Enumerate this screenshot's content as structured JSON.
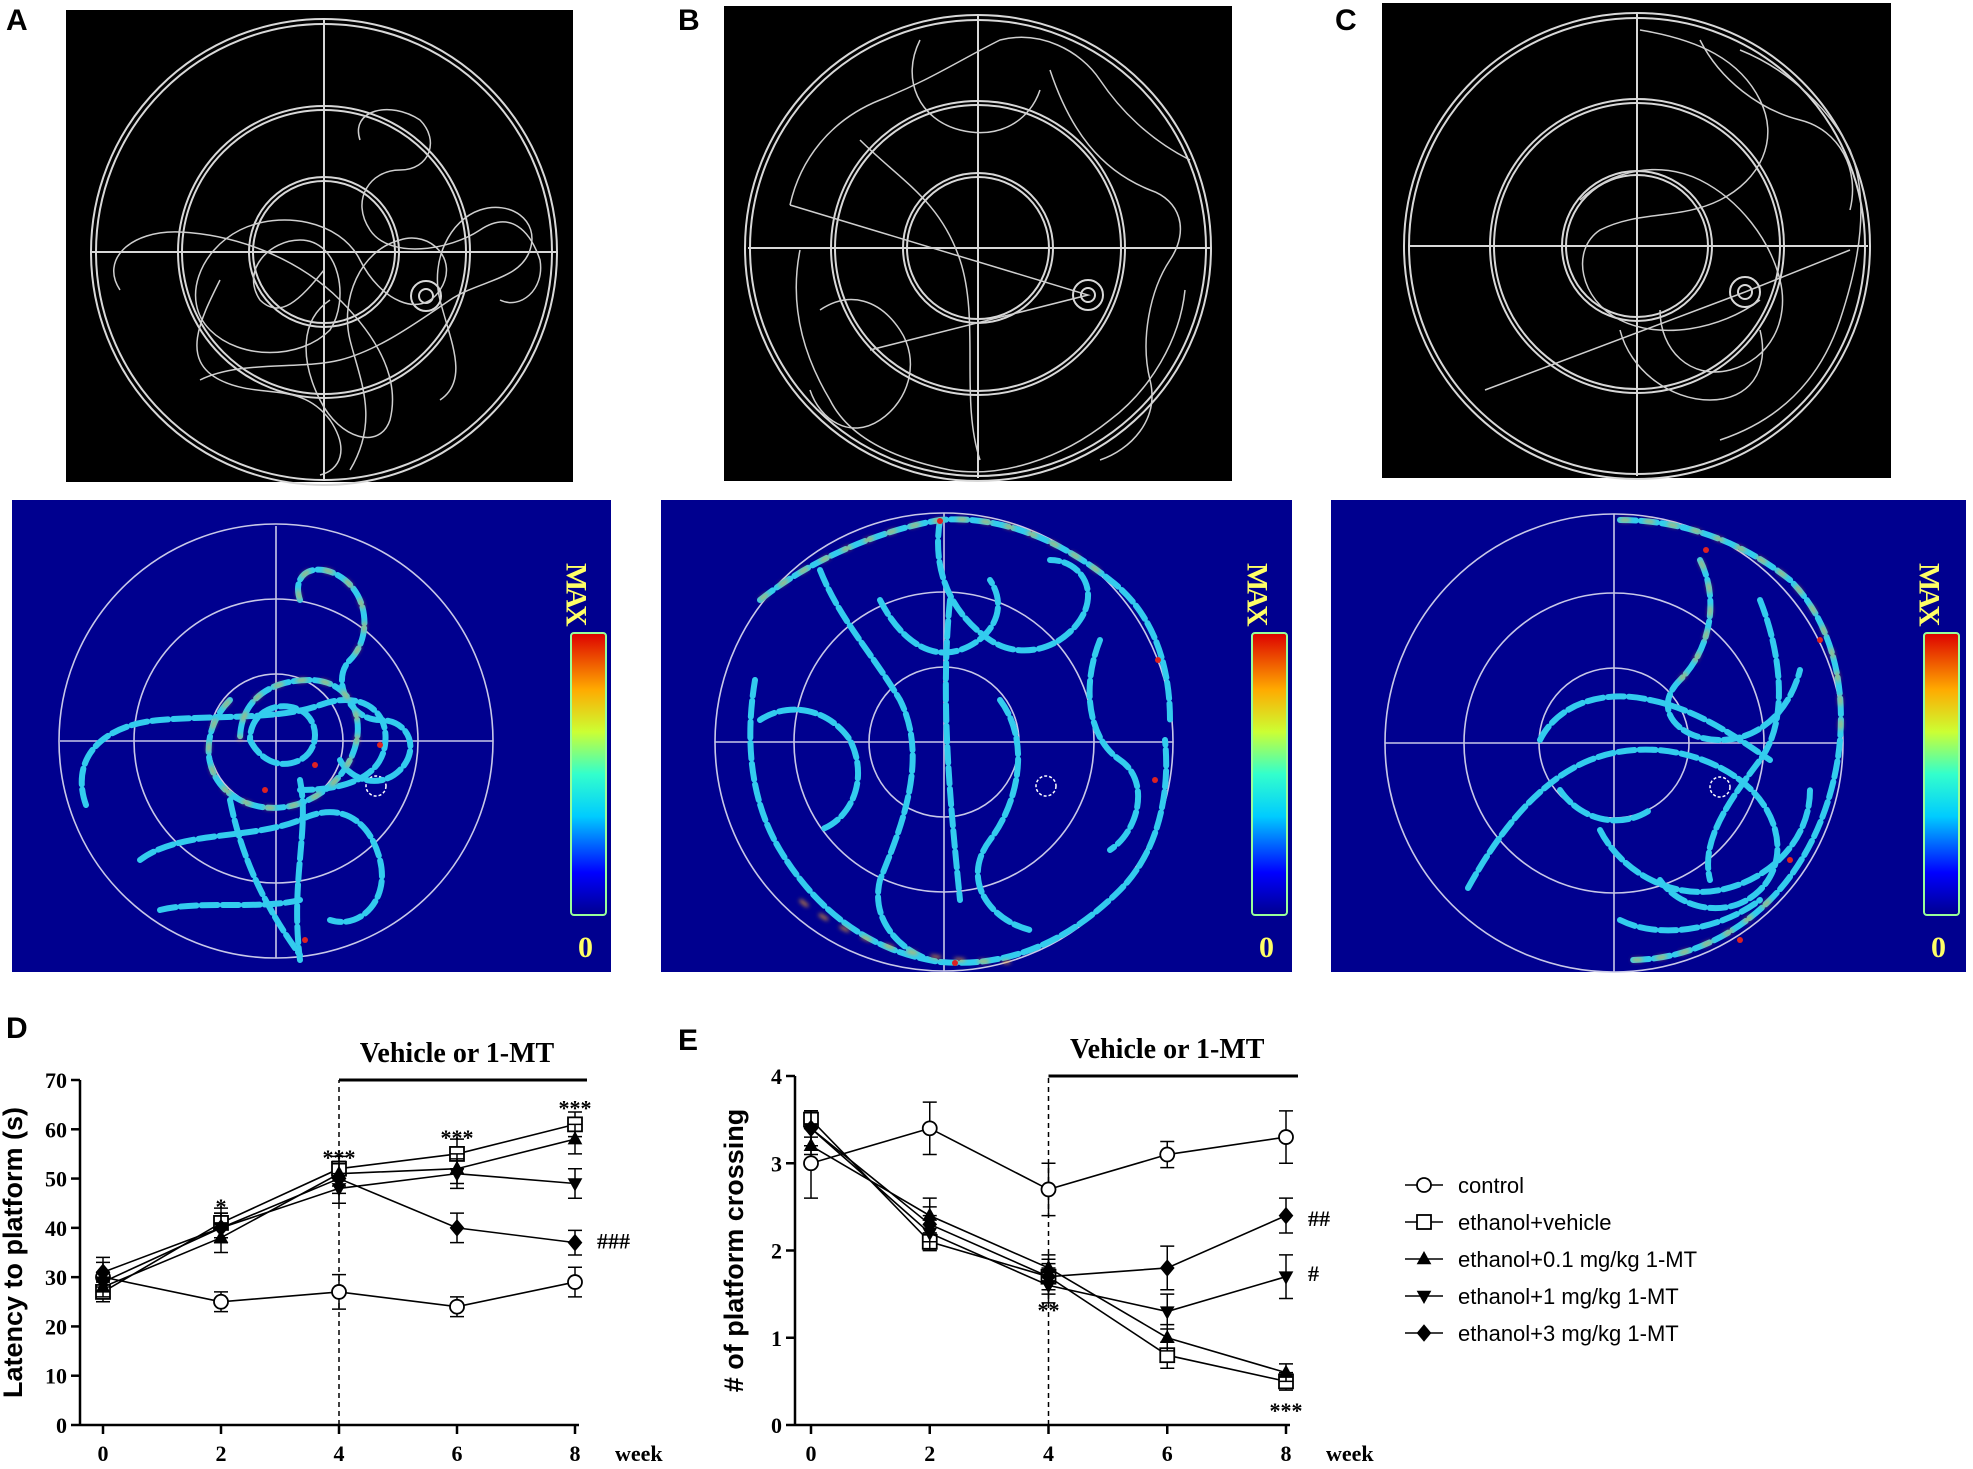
{
  "panel_labels": [
    "A",
    "B",
    "C",
    "D",
    "E"
  ],
  "colorbar": {
    "max_label": "MAX",
    "min_label": "0"
  },
  "colors": {
    "track_bg": "#000000",
    "heatmap_bg": "#00008f",
    "track_line": "#d8d8d8",
    "heat_path": "#33ccee"
  },
  "chart_data": [
    {
      "type": "line",
      "panel": "D",
      "ylabel": "Latency to platform (s)",
      "xlabel": "week",
      "x": [
        0,
        2,
        4,
        6,
        8
      ],
      "xticks": [
        "0",
        "2",
        "4",
        "6",
        "8"
      ],
      "yticks": [
        "0",
        "10",
        "20",
        "30",
        "40",
        "50",
        "60",
        "70"
      ],
      "ylim": [
        0,
        70
      ],
      "xlim": [
        0,
        8
      ],
      "treatment_label": "Vehicle or 1-MT",
      "treatment_start": 4,
      "series": [
        {
          "name": "control",
          "marker": "circle-open",
          "values": [
            30,
            25,
            27,
            24,
            29
          ],
          "err": [
            3,
            2,
            3.5,
            2,
            3
          ]
        },
        {
          "name": "ethanol+vehicle",
          "marker": "square-open",
          "values": [
            27,
            41,
            52,
            55,
            61
          ],
          "err": [
            2,
            3,
            2.5,
            3,
            2.5
          ]
        },
        {
          "name": "ethanol+0.1 mg/kg 1-MT",
          "marker": "triangle-up",
          "values": [
            28,
            38,
            51,
            52,
            58
          ],
          "err": [
            2,
            3,
            2.5,
            3,
            3
          ]
        },
        {
          "name": "ethanol+1 mg/kg 1-MT",
          "marker": "triangle-down",
          "values": [
            29,
            40,
            48,
            51,
            49
          ],
          "err": [
            2,
            3,
            3,
            3,
            3
          ]
        },
        {
          "name": "ethanol+3 mg/kg 1-MT",
          "marker": "diamond",
          "values": [
            31,
            40,
            50,
            40,
            37
          ],
          "err": [
            3,
            3,
            3,
            3,
            2.5
          ]
        }
      ],
      "annotations": [
        {
          "x": 2,
          "y": 44,
          "text": "*"
        },
        {
          "x": 4,
          "y": 54,
          "text": "***"
        },
        {
          "x": 6,
          "y": 58,
          "text": "***"
        },
        {
          "x": 8,
          "y": 64,
          "text": "***"
        },
        {
          "x": 8,
          "y": 37,
          "text": "###"
        }
      ]
    },
    {
      "type": "line",
      "panel": "E",
      "ylabel": "# of platform crossing",
      "xlabel": "week",
      "x": [
        0,
        2,
        4,
        6,
        8
      ],
      "xticks": [
        "0",
        "2",
        "4",
        "6",
        "8"
      ],
      "yticks": [
        "0",
        "1",
        "2",
        "3",
        "4"
      ],
      "ylim": [
        0,
        4
      ],
      "xlim": [
        0,
        8
      ],
      "treatment_label": "Vehicle or 1-MT",
      "treatment_start": 4,
      "series": [
        {
          "name": "control",
          "marker": "circle-open",
          "values": [
            3.0,
            3.4,
            2.7,
            3.1,
            3.3
          ],
          "err": [
            0.4,
            0.3,
            0.3,
            0.15,
            0.3
          ]
        },
        {
          "name": "ethanol+vehicle",
          "marker": "square-open",
          "values": [
            3.5,
            2.1,
            1.7,
            0.8,
            0.5
          ],
          "err": [
            0.1,
            0.1,
            0.15,
            0.15,
            0.1
          ]
        },
        {
          "name": "ethanol+0.1 mg/kg 1-MT",
          "marker": "triangle-up",
          "values": [
            3.2,
            2.4,
            1.8,
            1.0,
            0.6
          ],
          "err": [
            0.1,
            0.2,
            0.15,
            0.15,
            0.1
          ]
        },
        {
          "name": "ethanol+1 mg/kg 1-MT",
          "marker": "triangle-down",
          "values": [
            3.4,
            2.2,
            1.6,
            1.3,
            1.7
          ],
          "err": [
            0.2,
            0.2,
            0.2,
            0.2,
            0.25
          ]
        },
        {
          "name": "ethanol+3 mg/kg 1-MT",
          "marker": "diamond",
          "values": [
            3.4,
            2.3,
            1.7,
            1.8,
            2.4
          ],
          "err": [
            0.2,
            0.2,
            0.2,
            0.25,
            0.2
          ]
        }
      ],
      "annotations": [
        {
          "x": 4,
          "y": 1.3,
          "text": "**"
        },
        {
          "x": 8,
          "y": 0.15,
          "text": "***"
        },
        {
          "x": 8,
          "y": 2.35,
          "text": "##"
        },
        {
          "x": 8,
          "y": 1.72,
          "text": "#"
        }
      ]
    }
  ]
}
